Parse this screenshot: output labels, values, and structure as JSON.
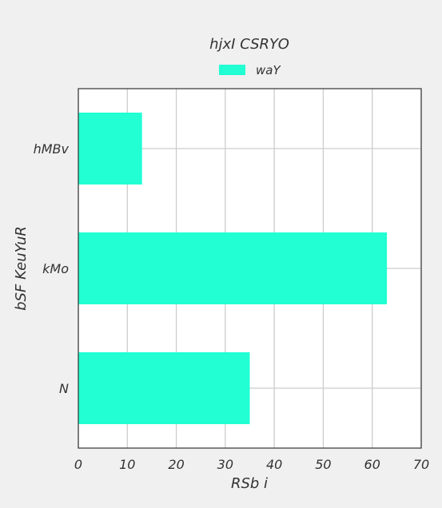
{
  "chart_data": {
    "type": "bar",
    "orientation": "horizontal",
    "title": "hjxI  CSRYO",
    "xlabel": "RSb i",
    "ylabel": "bSF KeuYuR",
    "categories": [
      "hMBv",
      "kMo",
      "N"
    ],
    "series": [
      {
        "name": "waY",
        "values": [
          13,
          63,
          35
        ],
        "color": "#21ffd3"
      }
    ],
    "xlim": [
      0,
      70
    ],
    "xticks": [
      0,
      10,
      20,
      30,
      40,
      50,
      60,
      70
    ],
    "grid": true,
    "legend": "top-center",
    "colors": {
      "background": "#f0f0f0",
      "plot_background": "#ffffff",
      "grid": "#cccccc",
      "axis": "#333333"
    }
  }
}
